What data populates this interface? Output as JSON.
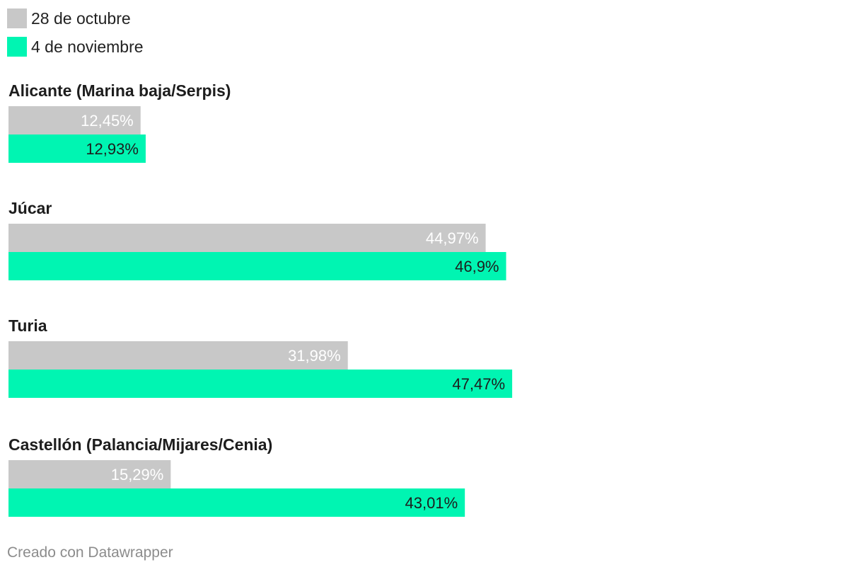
{
  "legend": [
    {
      "label": "28 de octubre",
      "color": "#c8c8c8"
    },
    {
      "label": "4 de noviembre",
      "color": "#00f5b2"
    }
  ],
  "chart_data": {
    "type": "bar",
    "orientation": "horizontal",
    "categories": [
      "Alicante (Marina baja/Serpis)",
      "Júcar",
      "Turia",
      "Castellón (Palancia/Mijares/Cenia)"
    ],
    "series": [
      {
        "name": "28 de octubre",
        "values": [
          12.45,
          44.97,
          31.98,
          15.29
        ],
        "labels": [
          "12,45%",
          "44,97%",
          "31,98%",
          "15,29%"
        ],
        "color": "#c8c8c8",
        "label_color": "#ffffff"
      },
      {
        "name": "4 de noviembre",
        "values": [
          12.93,
          46.9,
          47.47,
          43.01
        ],
        "labels": [
          "12,93%",
          "46,9%",
          "47,47%",
          "43,01%"
        ],
        "color": "#00f5b2",
        "label_color": "#1d1d1d"
      }
    ],
    "xlim": [
      0,
      80
    ],
    "legend_position": "top-left",
    "grid": false
  },
  "footer": "Creado con Datawrapper"
}
